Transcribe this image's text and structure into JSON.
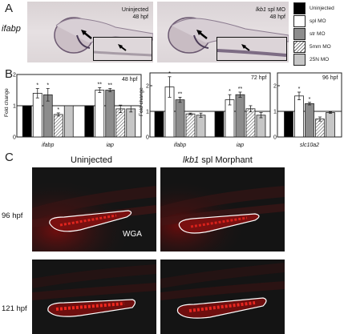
{
  "panels": {
    "a_label": "A",
    "b_label": "B",
    "c_label": "C"
  },
  "panel_a": {
    "side_label": "ifabp",
    "left_image": {
      "line1": "Uninjected",
      "line2": "48 hpf"
    },
    "right_image": {
      "line1_italic": "lkb1",
      "line1_rest": " spl MO",
      "line2": "48 hpf"
    }
  },
  "legend": {
    "items": [
      {
        "label": "Uninjected",
        "color": "#000000",
        "hatch": false
      },
      {
        "label": "spl MO",
        "color": "#ffffff",
        "hatch": false
      },
      {
        "label": "str MO",
        "color": "#8c8c8c",
        "hatch": false
      },
      {
        "label": "5mm MO",
        "color": "#ffffff",
        "hatch": true
      },
      {
        "label": "25N MO",
        "color": "#c6c6c6",
        "hatch": false
      }
    ]
  },
  "chart_data": [
    {
      "type": "bar",
      "title": "48 hpf",
      "ylabel": "Fold change",
      "ylim": [
        0,
        2
      ],
      "yticks": [
        0,
        1,
        2
      ],
      "reference_line": 1,
      "categories": [
        "ifabp",
        "iap"
      ],
      "series": [
        {
          "name": "Uninjected",
          "values": [
            1.0,
            1.0
          ],
          "errors": [
            0.0,
            0.0
          ],
          "sig": [
            "",
            ""
          ]
        },
        {
          "name": "spl MO",
          "values": [
            1.4,
            1.5
          ],
          "errors": [
            0.15,
            0.08
          ],
          "sig": [
            "*",
            "**"
          ]
        },
        {
          "name": "str MO",
          "values": [
            1.35,
            1.5
          ],
          "errors": [
            0.2,
            0.05
          ],
          "sig": [
            "*",
            "**"
          ]
        },
        {
          "name": "5mm MO",
          "values": [
            0.72,
            0.9
          ],
          "errors": [
            0.05,
            0.12
          ],
          "sig": [
            "*",
            ""
          ]
        },
        {
          "name": "25N MO",
          "values": [
            1.0,
            0.9
          ],
          "errors": [
            0.0,
            0.1
          ],
          "sig": [
            "",
            ""
          ]
        }
      ]
    },
    {
      "type": "bar",
      "title": "72 hpf",
      "ylabel": "Fold change",
      "ylim": [
        0,
        2.5
      ],
      "yticks": [
        0,
        1,
        2
      ],
      "reference_line": 1,
      "categories": [
        "ifabp",
        "iap"
      ],
      "series": [
        {
          "name": "Uninjected",
          "values": [
            1.0,
            1.0
          ],
          "errors": [
            0.0,
            0.0
          ],
          "sig": [
            "",
            ""
          ]
        },
        {
          "name": "spl MO",
          "values": [
            1.95,
            1.45
          ],
          "errors": [
            0.4,
            0.2
          ],
          "sig": [
            "*",
            "*"
          ]
        },
        {
          "name": "str MO",
          "values": [
            1.45,
            1.65
          ],
          "errors": [
            0.1,
            0.1
          ],
          "sig": [
            "**",
            "**"
          ]
        },
        {
          "name": "5mm MO",
          "values": [
            0.9,
            1.1
          ],
          "errors": [
            0.03,
            0.12
          ],
          "sig": [
            "",
            ""
          ]
        },
        {
          "name": "25N MO",
          "values": [
            0.85,
            0.85
          ],
          "errors": [
            0.08,
            0.1
          ],
          "sig": [
            "",
            ""
          ]
        }
      ]
    },
    {
      "type": "bar",
      "title": "96 hpf",
      "ylabel": "",
      "ylim": [
        0,
        2.5
      ],
      "yticks": [
        0,
        1,
        2
      ],
      "reference_line": 1,
      "categories": [
        "slc10a2"
      ],
      "series": [
        {
          "name": "Uninjected",
          "values": [
            1.0
          ],
          "errors": [
            0.0
          ],
          "sig": [
            ""
          ]
        },
        {
          "name": "spl MO",
          "values": [
            1.6
          ],
          "errors": [
            0.15
          ],
          "sig": [
            "*"
          ]
        },
        {
          "name": "str MO",
          "values": [
            1.3
          ],
          "errors": [
            0.05
          ],
          "sig": [
            "*"
          ]
        },
        {
          "name": "5mm MO",
          "values": [
            0.7
          ],
          "errors": [
            0.08
          ],
          "sig": [
            ""
          ]
        },
        {
          "name": "25N MO",
          "values": [
            0.95
          ],
          "errors": [
            0.03
          ],
          "sig": [
            ""
          ]
        }
      ]
    }
  ],
  "panel_c": {
    "col1_title": "Uninjected",
    "col2_title_italic": "lkb1",
    "col2_title_rest": " spl Morphant",
    "row1_label": "96 hpf",
    "row2_label": "121 hpf",
    "stain_label": "WGA"
  }
}
